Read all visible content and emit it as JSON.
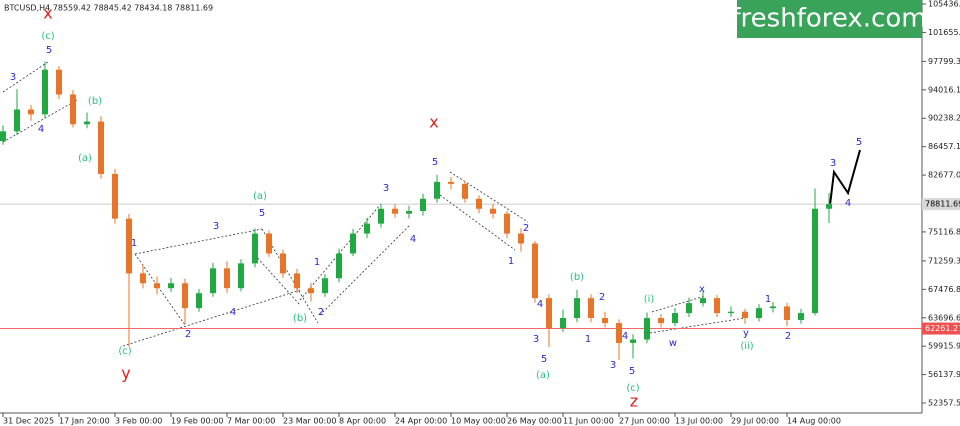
{
  "chart_data": {
    "type": "candlestick",
    "title": "BTCUSD,H4  78559.42 78845.42 78434.18 78811.69",
    "logo": "freshforex.com",
    "categories": [
      "31 Dec 2025",
      null,
      null,
      null,
      "17 Jan 20:00",
      null,
      null,
      null,
      "3 Feb 00:00",
      null,
      null,
      null,
      "19 Feb 00:00",
      null,
      null,
      null,
      "7 Mar 00:00",
      null,
      null,
      null,
      "23 Mar 00:00",
      null,
      null,
      null,
      "8 Apr 00:00",
      null,
      null,
      null,
      "24 Apr 00:00",
      null,
      null,
      null,
      "10 May 00:00",
      null,
      null,
      null,
      "26 May 00:00",
      null,
      null,
      null,
      "11 Jun 00:00",
      null,
      null,
      null,
      "27 Jun 00:00",
      null,
      null,
      null,
      "13 Jul 00:00",
      null,
      null,
      null,
      "29 Jul 00:00",
      null,
      null,
      null,
      "14 Aug 00:00",
      null,
      null,
      null
    ],
    "open": [
      87200,
      88500,
      91400,
      90760,
      96700,
      93400,
      89440,
      89800,
      82830,
      76880,
      69600,
      68290,
      67630,
      68290,
      64980,
      66970,
      70270,
      67630,
      70930,
      74900,
      72250,
      69600,
      67630,
      66970,
      68950,
      72250,
      74900,
      76220,
      78200,
      77540,
      77900,
      79530,
      81770,
      81510,
      79530,
      78200,
      77540,
      74900,
      73580,
      66310,
      62340,
      63660,
      66310,
      63660,
      62990,
      60350,
      60800,
      63660,
      62990,
      64320,
      65640,
      66310,
      64320,
      64500,
      63660,
      64980,
      65200,
      63400,
      64320,
      78200
    ],
    "high": [
      89300,
      94100,
      92000,
      97800,
      97200,
      94000,
      91000,
      90500,
      83500,
      77500,
      70800,
      69200,
      69000,
      68900,
      67500,
      71000,
      71200,
      71500,
      75600,
      75300,
      72800,
      70200,
      68300,
      69500,
      72900,
      75500,
      77000,
      78900,
      78800,
      78600,
      80200,
      82700,
      82400,
      81900,
      80000,
      78800,
      77900,
      75600,
      73900,
      66800,
      64800,
      67400,
      66800,
      64500,
      63500,
      61500,
      64400,
      64200,
      65000,
      66400,
      67200,
      66700,
      65200,
      64900,
      65500,
      65800,
      65700,
      64900,
      80900,
      80300
    ],
    "low": [
      86700,
      88000,
      89900,
      90200,
      92800,
      89000,
      88900,
      82200,
      76200,
      59900,
      67600,
      66800,
      67100,
      62800,
      64500,
      66500,
      67000,
      67200,
      70400,
      71800,
      69000,
      67000,
      65900,
      66500,
      68400,
      71900,
      74300,
      75700,
      77000,
      76900,
      77300,
      79000,
      80800,
      79000,
      77600,
      76900,
      74300,
      72500,
      65700,
      59800,
      61800,
      63100,
      63100,
      62400,
      58100,
      58300,
      60300,
      62400,
      62600,
      63800,
      65200,
      63800,
      63800,
      62900,
      63200,
      64400,
      62600,
      62900,
      64000,
      76300
    ],
    "close": [
      88500,
      91400,
      90760,
      96700,
      93400,
      89440,
      89800,
      82830,
      76880,
      69600,
      68290,
      67630,
      68290,
      64980,
      66970,
      70270,
      67630,
      70930,
      74900,
      72250,
      69600,
      67630,
      66970,
      68950,
      72250,
      74900,
      76220,
      78200,
      77540,
      77900,
      79530,
      81770,
      81510,
      79530,
      78200,
      77540,
      74900,
      73580,
      66310,
      62340,
      63660,
      66310,
      63660,
      62990,
      60350,
      60800,
      63660,
      62990,
      64320,
      65640,
      66310,
      64320,
      64500,
      63660,
      64980,
      65200,
      63400,
      64320,
      78200,
      78811.69
    ],
    "up_color": "#22a843",
    "down_color": "#e8742a",
    "ylim": [
      51027,
      105969
    ],
    "yticks": [
      105436.75,
      101655.32,
      97799.39,
      94016.15,
      90238.22,
      86457.15,
      {
        "value": 82677,
        "label": "82677.00"
      },
      {
        "value": 75116.8,
        "label": "75116.80"
      },
      {
        "value": 71259.3,
        "label": "71259.30"
      },
      67476.85,
      {
        "value": 63696.6,
        "label": "63696.60"
      },
      59915.95,
      {
        "value": 56137.9,
        "label": "56137.90"
      },
      52357.55
    ],
    "current_price": 78811.69,
    "level_price": 62261.27,
    "annotations": [
      {
        "text": "x",
        "color": "#e0201c"
      },
      {
        "text": "y",
        "color": "#e0201c"
      },
      {
        "text": "x",
        "color": "#e0201c"
      },
      {
        "text": "z",
        "color": "#e0201c"
      },
      {
        "text": "(c)",
        "color": "#26c27a"
      },
      {
        "text": "(b)",
        "color": "#26c27a"
      },
      {
        "text": "(a)",
        "color": "#26c27a"
      },
      {
        "text": "(c)",
        "color": "#26c27a"
      },
      {
        "text": "(a)",
        "color": "#26c27a"
      },
      {
        "text": "(b)",
        "color": "#26c27a"
      },
      {
        "text": "(b)",
        "color": "#26c27a"
      },
      {
        "text": "(a)",
        "color": "#26c27a"
      },
      {
        "text": "(i)",
        "color": "#26c27a"
      },
      {
        "text": "(c)",
        "color": "#26c27a"
      },
      {
        "text": "(ii)",
        "color": "#26c27a"
      },
      {
        "text": "5",
        "color": "#2a2ad0"
      },
      {
        "text": "3",
        "color": "#2a2ad0"
      },
      {
        "text": "4",
        "color": "#2a2ad0"
      },
      {
        "text": "1",
        "color": "#2a2ad0"
      },
      {
        "text": "2",
        "color": "#2a2ad0"
      },
      {
        "text": "3",
        "color": "#2a2ad0"
      },
      {
        "text": "5",
        "color": "#2a2ad0"
      },
      {
        "text": "4",
        "color": "#2a2ad0"
      },
      {
        "text": "1",
        "color": "#2a2ad0"
      },
      {
        "text": "2",
        "color": "#2a2ad0"
      },
      {
        "text": "3",
        "color": "#2a2ad0"
      },
      {
        "text": "4",
        "color": "#2a2ad0"
      },
      {
        "text": "5",
        "color": "#2a2ad0"
      },
      {
        "text": "2",
        "color": "#2a2ad0"
      },
      {
        "text": "1",
        "color": "#2a2ad0"
      },
      {
        "text": "4",
        "color": "#2a2ad0"
      },
      {
        "text": "3",
        "color": "#2a2ad0"
      },
      {
        "text": "5",
        "color": "#2a2ad0"
      },
      {
        "text": "1",
        "color": "#2a2ad0"
      },
      {
        "text": "2",
        "color": "#2a2ad0"
      },
      {
        "text": "3",
        "color": "#2a2ad0"
      },
      {
        "text": "4",
        "color": "#2a2ad0"
      },
      {
        "text": "5",
        "color": "#2a2ad0"
      },
      {
        "text": "x",
        "color": "#2a2ad0"
      },
      {
        "text": "w",
        "color": "#2a2ad0"
      },
      {
        "text": "y",
        "color": "#2a2ad0"
      },
      {
        "text": "1",
        "color": "#2a2ad0"
      },
      {
        "text": "2",
        "color": "#2a2ad0"
      },
      {
        "text": "3",
        "color": "#2a2ad0"
      },
      {
        "text": "4",
        "color": "#2a2ad0"
      },
      {
        "text": "5",
        "color": "#2a2ad0"
      }
    ]
  }
}
